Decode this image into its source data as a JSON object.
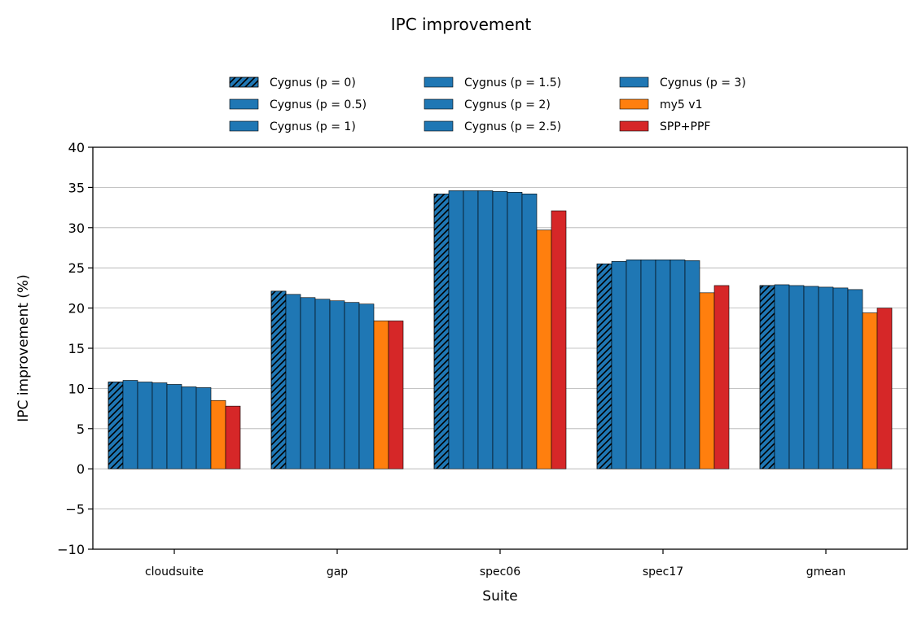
{
  "chart_data": {
    "type": "bar",
    "title": "IPC improvement",
    "xlabel": "Suite",
    "ylabel": "IPC improvement (%)",
    "ylim": [
      -10,
      40
    ],
    "yticks": [
      -10,
      -5,
      0,
      5,
      10,
      15,
      20,
      25,
      30,
      35,
      40
    ],
    "ytick_labels": [
      "−10",
      "−5",
      "0",
      "5",
      "10",
      "15",
      "20",
      "25",
      "30",
      "35",
      "40"
    ],
    "grid": "horizontal",
    "legend_position": "top-center",
    "categories": [
      "cloudsuite",
      "gap",
      "spec06",
      "spec17",
      "gmean"
    ],
    "series": [
      {
        "name": "Cygnus (p = 0)",
        "color": "#1f77b4",
        "hatch": true,
        "values": [
          10.8,
          22.1,
          34.2,
          25.5,
          22.8
        ]
      },
      {
        "name": "Cygnus (p = 0.5)",
        "color": "#1f77b4",
        "hatch": false,
        "values": [
          11.0,
          21.7,
          34.6,
          25.8,
          22.9
        ]
      },
      {
        "name": "Cygnus (p = 1)",
        "color": "#1f77b4",
        "hatch": false,
        "values": [
          10.8,
          21.3,
          34.6,
          26.0,
          22.8
        ]
      },
      {
        "name": "Cygnus (p = 1.5)",
        "color": "#1f77b4",
        "hatch": false,
        "values": [
          10.7,
          21.1,
          34.6,
          26.0,
          22.7
        ]
      },
      {
        "name": "Cygnus (p = 2)",
        "color": "#1f77b4",
        "hatch": false,
        "values": [
          10.5,
          20.9,
          34.5,
          26.0,
          22.6
        ]
      },
      {
        "name": "Cygnus (p = 2.5)",
        "color": "#1f77b4",
        "hatch": false,
        "values": [
          10.2,
          20.7,
          34.4,
          26.0,
          22.5
        ]
      },
      {
        "name": "Cygnus (p = 3)",
        "color": "#1f77b4",
        "hatch": false,
        "values": [
          10.1,
          20.5,
          34.2,
          25.9,
          22.3
        ]
      },
      {
        "name": "my5 v1",
        "color": "#ff7f0e",
        "hatch": false,
        "values": [
          8.5,
          18.4,
          29.7,
          21.9,
          19.4
        ]
      },
      {
        "name": "SPP+PPF",
        "color": "#d62728",
        "hatch": false,
        "values": [
          7.8,
          18.4,
          32.1,
          22.8,
          20.0
        ]
      }
    ]
  }
}
